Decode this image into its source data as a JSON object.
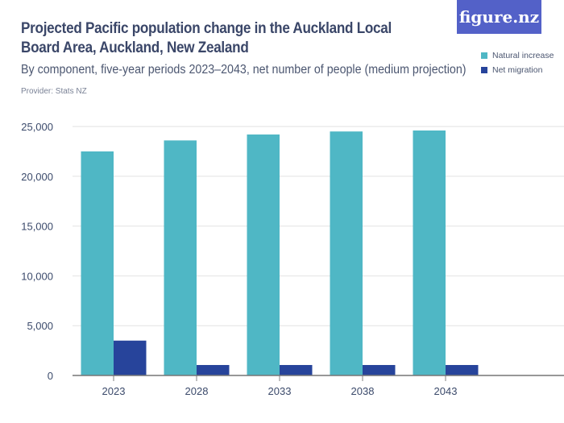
{
  "title": "Projected Pacific population change in the Auckland Local Board Area, Auckland, New Zealand",
  "subtitle": "By component, five-year periods 2023–2043, net number of people (medium projection)",
  "provider": "Provider: Stats NZ",
  "logo": "figure.nz",
  "chart_data": {
    "type": "bar",
    "categories": [
      "2023",
      "2028",
      "2033",
      "2038",
      "2043"
    ],
    "series": [
      {
        "name": "Natural increase",
        "color": "#4fb7c5",
        "values": [
          22500,
          23600,
          24200,
          24500,
          24600
        ]
      },
      {
        "name": "Net migration",
        "color": "#27449b",
        "values": [
          3500,
          1050,
          1050,
          1050,
          1050
        ]
      }
    ],
    "ylim": [
      0,
      25000
    ],
    "yticks": [
      0,
      5000,
      10000,
      15000,
      20000,
      25000
    ],
    "ytick_labels": [
      "0",
      "5,000",
      "10,000",
      "15,000",
      "20,000",
      "25,000"
    ],
    "grid": true,
    "legend": "top-right"
  }
}
